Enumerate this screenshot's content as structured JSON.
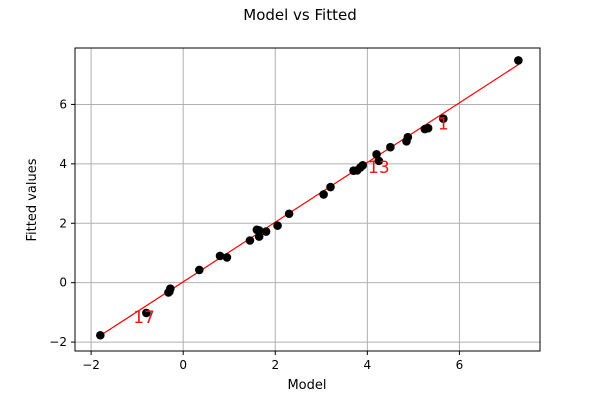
{
  "chart_data": {
    "type": "scatter",
    "title": "Model vs Fitted",
    "xlabel": "Model",
    "ylabel": "Fitted values",
    "xlim": [
      -2.35,
      7.75
    ],
    "ylim": [
      -2.3,
      7.9
    ],
    "xticks": [
      -2,
      0,
      2,
      4,
      6
    ],
    "yticks": [
      -2,
      0,
      2,
      4,
      6
    ],
    "xtick_labels": [
      "−2",
      "0",
      "2",
      "4",
      "6"
    ],
    "ytick_labels": [
      "−2",
      "0",
      "2",
      "4",
      "6"
    ],
    "grid": true,
    "line": {
      "x": [
        -1.8,
        7.28
      ],
      "y": [
        -1.78,
        7.34
      ],
      "color": "#ff0000"
    },
    "points": {
      "x": [
        -1.8,
        -0.8,
        -0.32,
        -0.3,
        -0.28,
        0.35,
        0.8,
        0.95,
        1.45,
        1.6,
        1.65,
        1.65,
        1.8,
        2.05,
        2.3,
        3.05,
        3.2,
        3.7,
        3.78,
        3.85,
        3.9,
        4.2,
        4.25,
        4.5,
        4.85,
        4.88,
        5.25,
        5.32,
        5.65,
        7.28
      ],
      "y": [
        -1.77,
        -1.02,
        -0.33,
        -0.3,
        -0.2,
        0.43,
        0.9,
        0.85,
        1.42,
        1.78,
        1.76,
        1.55,
        1.72,
        1.92,
        2.32,
        2.97,
        3.22,
        3.77,
        3.78,
        3.88,
        3.95,
        4.32,
        4.1,
        4.56,
        4.76,
        4.9,
        5.17,
        5.2,
        5.52,
        7.48
      ]
    },
    "annotations": [
      {
        "text": "17",
        "x": -0.85,
        "y": -1.35
      },
      {
        "text": "13",
        "x": 4.25,
        "y": 3.7
      },
      {
        "text": "1",
        "x": 5.65,
        "y": 5.15
      }
    ]
  }
}
